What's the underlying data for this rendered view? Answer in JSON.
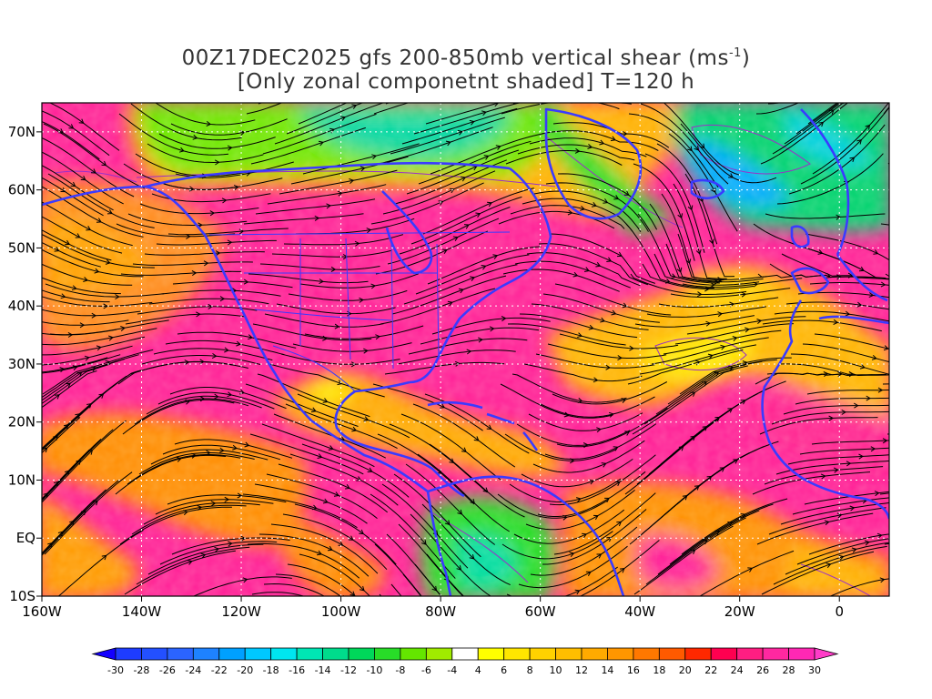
{
  "title": {
    "line1_prefix": "00Z17DEC2025 gfs 200-850mb vertical shear (ms",
    "line1_sup": "-1",
    "line1_suffix": ")",
    "line2": "[Only zonal componetnt shaded] T=120 h"
  },
  "map": {
    "extent": {
      "lon_min": -160,
      "lon_max": 10,
      "lat_min": -10,
      "lat_max": 75
    },
    "lon_ticks": [
      {
        "value": -160,
        "label": "160W"
      },
      {
        "value": -140,
        "label": "140W"
      },
      {
        "value": -120,
        "label": "120W"
      },
      {
        "value": -100,
        "label": "100W"
      },
      {
        "value": -80,
        "label": "80W"
      },
      {
        "value": -60,
        "label": "60W"
      },
      {
        "value": -40,
        "label": "40W"
      },
      {
        "value": -20,
        "label": "20W"
      },
      {
        "value": 0,
        "label": "0"
      }
    ],
    "lat_ticks": [
      {
        "value": 70,
        "label": "70N"
      },
      {
        "value": 60,
        "label": "60N"
      },
      {
        "value": 50,
        "label": "50N"
      },
      {
        "value": 40,
        "label": "40N"
      },
      {
        "value": 30,
        "label": "30N"
      },
      {
        "value": 20,
        "label": "20N"
      },
      {
        "value": 10,
        "label": "10N"
      },
      {
        "value": 0,
        "label": "EQ"
      },
      {
        "value": -10,
        "label": "10S"
      }
    ],
    "colors": {
      "coastline": "#3a3aff",
      "contour": "#9b30c8",
      "streamline": "#000000",
      "grid": "#ffffff"
    }
  },
  "colorbar": {
    "labels": [
      "-30",
      "-28",
      "-26",
      "-24",
      "-22",
      "-20",
      "-18",
      "-16",
      "-14",
      "-12",
      "-10",
      "-8",
      "-6",
      "-4",
      "4",
      "6",
      "8",
      "10",
      "12",
      "14",
      "16",
      "18",
      "20",
      "22",
      "24",
      "26",
      "28",
      "30"
    ],
    "colors": [
      "#1e3cff",
      "#2350ff",
      "#2b64ff",
      "#1e82ff",
      "#00a0ff",
      "#00c8ff",
      "#00e6f0",
      "#00e6b4",
      "#00dc8c",
      "#00d75a",
      "#28dc28",
      "#64e600",
      "#a0eb00",
      "#ffffff",
      "#ffff00",
      "#ffe600",
      "#ffd200",
      "#ffbe00",
      "#ffaa00",
      "#ff9600",
      "#ff7800",
      "#ff5a00",
      "#ff2800",
      "#ff0050",
      "#ff1e82",
      "#ff28a0",
      "#ff28b4"
    ],
    "under_color": "#1400ff",
    "over_color": "#ff3cc8"
  }
}
